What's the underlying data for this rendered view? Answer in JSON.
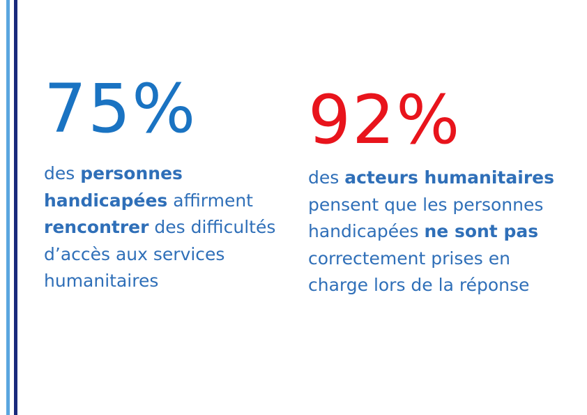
{
  "colors": {
    "blue_figure": "#1a73c2",
    "red_figure": "#e8141c",
    "text_blue": "#2f6fb8",
    "bar_light": "#5aa6df",
    "bar_dark": "#1a2a7c"
  },
  "stat_left": {
    "figure": "75%",
    "text": [
      {
        "t": "des ",
        "bold": false
      },
      {
        "t": "personnes handicapées",
        "bold": true
      },
      {
        "t": " affirment ",
        "bold": false
      },
      {
        "t": "rencontrer",
        "bold": true
      },
      {
        "t": " des difficultés d’accès aux services humanitaires",
        "bold": false
      }
    ]
  },
  "stat_right": {
    "figure": "92%",
    "text": [
      {
        "t": "des ",
        "bold": false
      },
      {
        "t": "acteurs humanitaires",
        "bold": true
      },
      {
        "t": " pensent que les personnes handicapées ",
        "bold": false
      },
      {
        "t": "ne sont pas",
        "bold": true
      },
      {
        "t": " correctement prises en charge lors de la réponse",
        "bold": false
      }
    ]
  }
}
